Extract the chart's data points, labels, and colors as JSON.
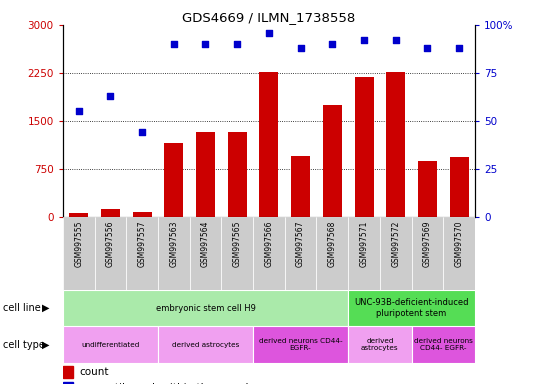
{
  "title": "GDS4669 / ILMN_1738558",
  "samples": [
    "GSM997555",
    "GSM997556",
    "GSM997557",
    "GSM997563",
    "GSM997564",
    "GSM997565",
    "GSM997566",
    "GSM997567",
    "GSM997568",
    "GSM997571",
    "GSM997572",
    "GSM997569",
    "GSM997570"
  ],
  "counts": [
    60,
    120,
    70,
    1150,
    1320,
    1320,
    2270,
    950,
    1750,
    2180,
    2270,
    870,
    940
  ],
  "percentiles": [
    55,
    63,
    44,
    90,
    90,
    90,
    96,
    88,
    90,
    92,
    92,
    88,
    88
  ],
  "bar_color": "#cc0000",
  "dot_color": "#0000cc",
  "ylim_left": [
    0,
    3000
  ],
  "ylim_right": [
    0,
    100
  ],
  "yticks_left": [
    0,
    750,
    1500,
    2250,
    3000
  ],
  "yticks_right": [
    0,
    25,
    50,
    75,
    100
  ],
  "ytick_labels_left": [
    "0",
    "750",
    "1500",
    "2250",
    "3000"
  ],
  "ytick_labels_right": [
    "0",
    "25",
    "50",
    "75",
    "100%"
  ],
  "cell_line_groups": [
    {
      "label": "embryonic stem cell H9",
      "start": 0,
      "end": 9,
      "color": "#aaeaaa"
    },
    {
      "label": "UNC-93B-deficient-induced\npluripotent stem",
      "start": 9,
      "end": 13,
      "color": "#55dd55"
    }
  ],
  "cell_type_groups": [
    {
      "label": "undifferentiated",
      "start": 0,
      "end": 3,
      "color": "#f0a0f0"
    },
    {
      "label": "derived astrocytes",
      "start": 3,
      "end": 6,
      "color": "#f0a0f0"
    },
    {
      "label": "derived neurons CD44-\nEGFR-",
      "start": 6,
      "end": 9,
      "color": "#dd55dd"
    },
    {
      "label": "derived\nastrocytes",
      "start": 9,
      "end": 11,
      "color": "#f0a0f0"
    },
    {
      "label": "derived neurons\nCD44- EGFR-",
      "start": 11,
      "end": 13,
      "color": "#dd55dd"
    }
  ],
  "bg_color": "#ffffff",
  "left_label_color": "#cc0000",
  "right_label_color": "#0000cc",
  "tick_bg_color": "#cccccc"
}
